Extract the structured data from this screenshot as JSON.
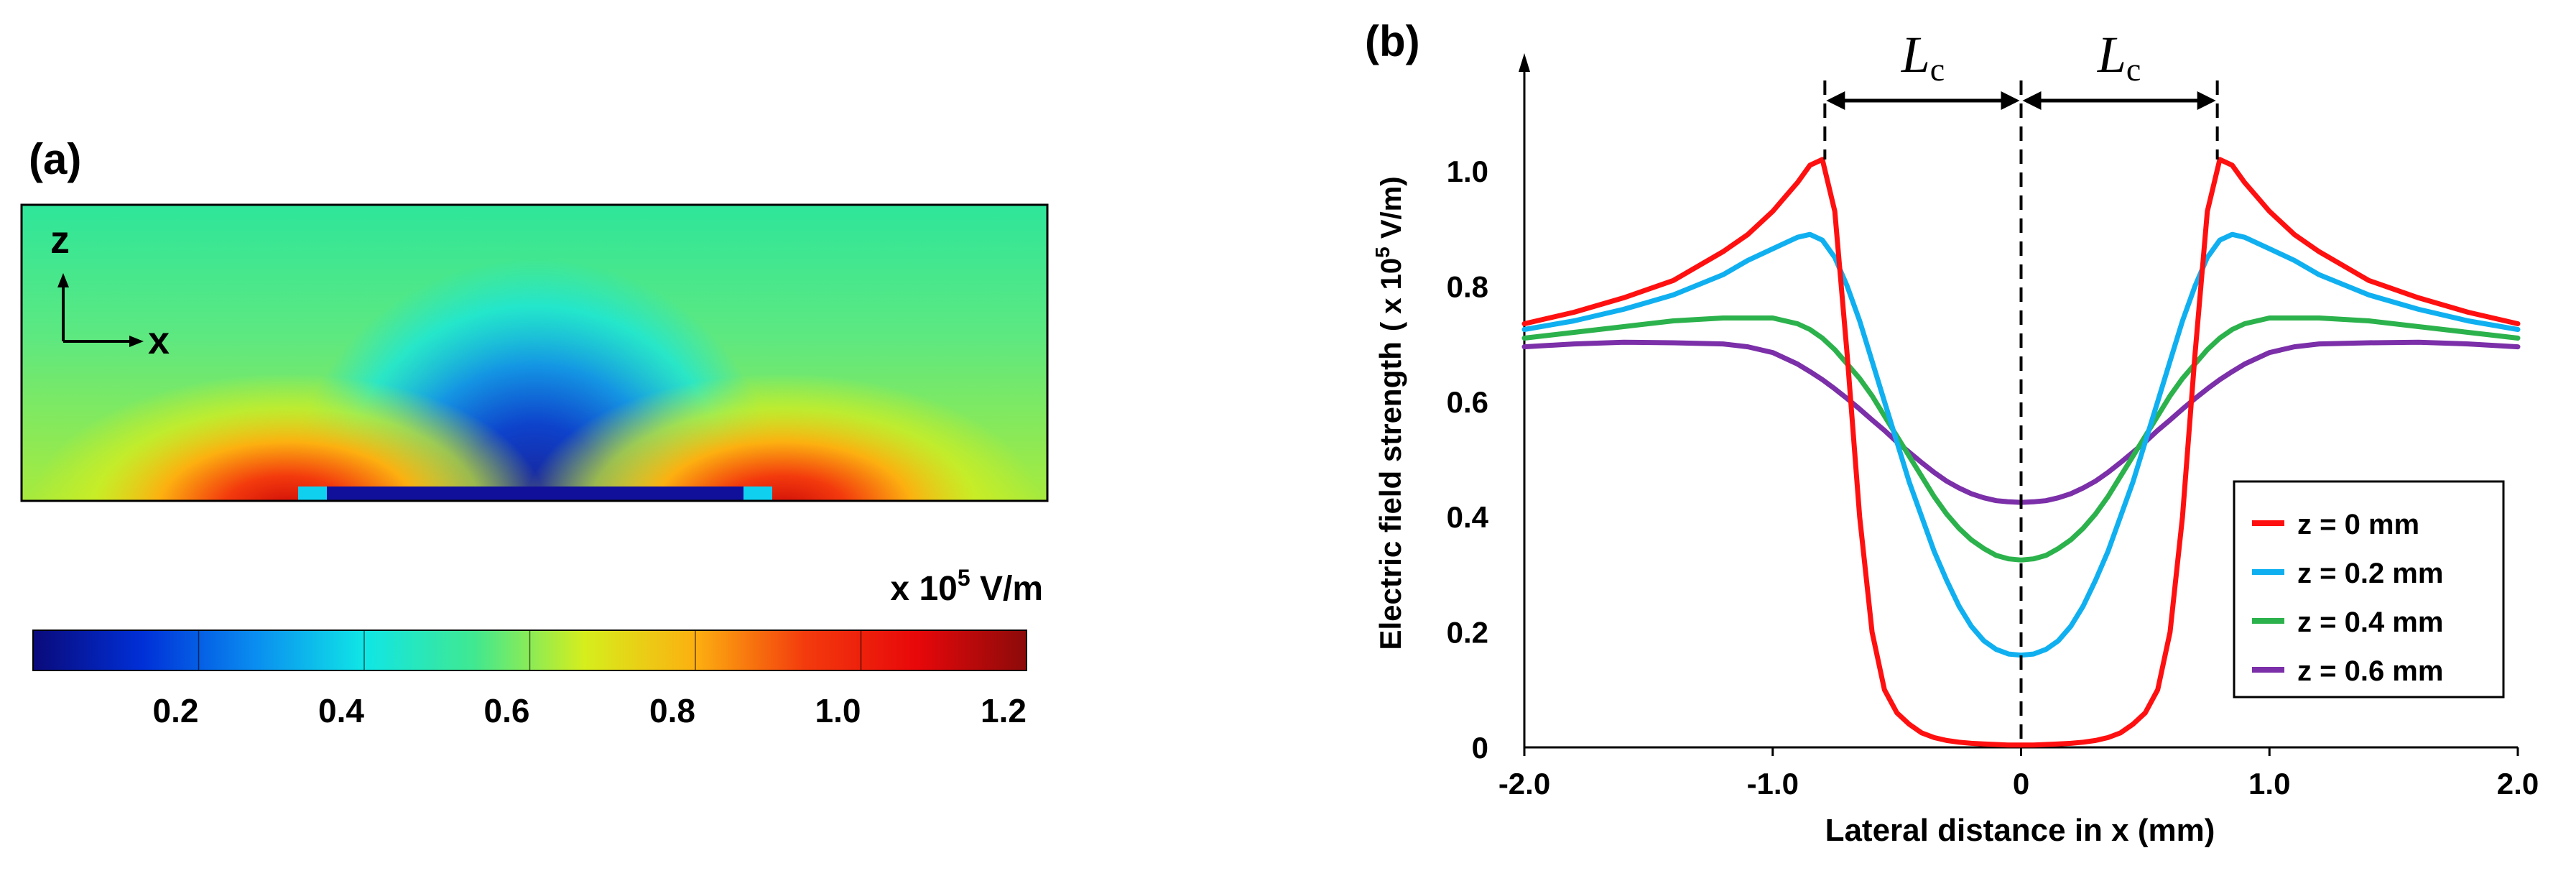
{
  "panel_a": {
    "label": "(a)",
    "axis_z": "z",
    "axis_x": "x",
    "colorbar": {
      "unit_prefix": "x 10",
      "unit_exp": "5",
      "unit_suffix": " V/m",
      "ticks": [
        "0.2",
        "0.4",
        "0.6",
        "0.8",
        "1.0",
        "1.2"
      ],
      "stops": [
        "#0a0a7a",
        "#0030d8",
        "#0a8cf0",
        "#10e6e6",
        "#40e890",
        "#d6ee1c",
        "#fcb010",
        "#f33a0d",
        "#e8080a",
        "#8c0a0a"
      ]
    }
  },
  "chart_data": {
    "type": "line",
    "panel_label": "(b)",
    "xlabel": "Lateral distance in x (mm)",
    "ylabel_main": "Electric field strength",
    "ylabel_unit_prefix": "( x 10",
    "ylabel_unit_exp": "5",
    "ylabel_unit_suffix": " V/m)",
    "xlim": [
      -2.0,
      2.0
    ],
    "ylim": [
      0,
      1.2
    ],
    "xtick_labels": [
      "-2.0",
      "-1.0",
      "0",
      "1.0",
      "2.0"
    ],
    "ytick_labels": [
      "0",
      "0.2",
      "0.4",
      "0.6",
      "0.8",
      "1.0"
    ],
    "annotation": {
      "symbol": "L",
      "subscript": "c",
      "marker_x": 0.79
    },
    "x": [
      -2.0,
      -1.8,
      -1.6,
      -1.4,
      -1.2,
      -1.1,
      -1.0,
      -0.95,
      -0.9,
      -0.85,
      -0.8,
      -0.75,
      -0.7,
      -0.65,
      -0.6,
      -0.55,
      -0.5,
      -0.45,
      -0.4,
      -0.35,
      -0.3,
      -0.25,
      -0.2,
      -0.15,
      -0.1,
      -0.05,
      0,
      0.05,
      0.1,
      0.15,
      0.2,
      0.25,
      0.3,
      0.35,
      0.4,
      0.45,
      0.5,
      0.55,
      0.6,
      0.65,
      0.7,
      0.75,
      0.8,
      0.85,
      0.9,
      0.95,
      1.0,
      1.1,
      1.2,
      1.4,
      1.6,
      1.8,
      2.0
    ],
    "series": [
      {
        "name": "z = 0 mm",
        "color": "#ff1010",
        "values": [
          0.735,
          0.755,
          0.78,
          0.81,
          0.86,
          0.89,
          0.93,
          0.955,
          0.98,
          1.01,
          1.02,
          0.93,
          0.68,
          0.4,
          0.2,
          0.1,
          0.06,
          0.04,
          0.025,
          0.017,
          0.012,
          0.009,
          0.007,
          0.006,
          0.005,
          0.004,
          0.004,
          0.004,
          0.005,
          0.006,
          0.007,
          0.009,
          0.012,
          0.017,
          0.025,
          0.04,
          0.06,
          0.1,
          0.2,
          0.4,
          0.68,
          0.93,
          1.02,
          1.01,
          0.98,
          0.955,
          0.93,
          0.89,
          0.86,
          0.81,
          0.78,
          0.755,
          0.735
        ]
      },
      {
        "name": "z = 0.2 mm",
        "color": "#10b0f0",
        "values": [
          0.725,
          0.74,
          0.76,
          0.785,
          0.82,
          0.845,
          0.865,
          0.875,
          0.885,
          0.89,
          0.88,
          0.85,
          0.8,
          0.74,
          0.67,
          0.6,
          0.53,
          0.46,
          0.4,
          0.34,
          0.29,
          0.245,
          0.21,
          0.185,
          0.17,
          0.162,
          0.16,
          0.162,
          0.17,
          0.185,
          0.21,
          0.245,
          0.29,
          0.34,
          0.4,
          0.46,
          0.53,
          0.6,
          0.67,
          0.74,
          0.8,
          0.85,
          0.88,
          0.89,
          0.885,
          0.875,
          0.865,
          0.845,
          0.82,
          0.785,
          0.76,
          0.74,
          0.725
        ]
      },
      {
        "name": "z = 0.4 mm",
        "color": "#2cb24c",
        "values": [
          0.71,
          0.72,
          0.73,
          0.74,
          0.745,
          0.745,
          0.745,
          0.74,
          0.735,
          0.725,
          0.71,
          0.69,
          0.665,
          0.64,
          0.61,
          0.575,
          0.54,
          0.505,
          0.47,
          0.435,
          0.405,
          0.38,
          0.36,
          0.345,
          0.333,
          0.327,
          0.325,
          0.327,
          0.333,
          0.345,
          0.36,
          0.38,
          0.405,
          0.435,
          0.47,
          0.505,
          0.54,
          0.575,
          0.61,
          0.64,
          0.665,
          0.69,
          0.71,
          0.725,
          0.735,
          0.74,
          0.745,
          0.745,
          0.745,
          0.74,
          0.73,
          0.72,
          0.71
        ]
      },
      {
        "name": "z = 0.6 mm",
        "color": "#7b2fa8",
        "values": [
          0.695,
          0.7,
          0.703,
          0.702,
          0.7,
          0.695,
          0.685,
          0.675,
          0.665,
          0.652,
          0.638,
          0.622,
          0.605,
          0.587,
          0.568,
          0.55,
          0.53,
          0.512,
          0.494,
          0.477,
          0.462,
          0.45,
          0.44,
          0.433,
          0.428,
          0.426,
          0.425,
          0.426,
          0.428,
          0.433,
          0.44,
          0.45,
          0.462,
          0.477,
          0.494,
          0.512,
          0.53,
          0.55,
          0.568,
          0.587,
          0.605,
          0.622,
          0.638,
          0.652,
          0.665,
          0.675,
          0.685,
          0.695,
          0.7,
          0.702,
          0.703,
          0.7,
          0.695
        ]
      }
    ]
  }
}
